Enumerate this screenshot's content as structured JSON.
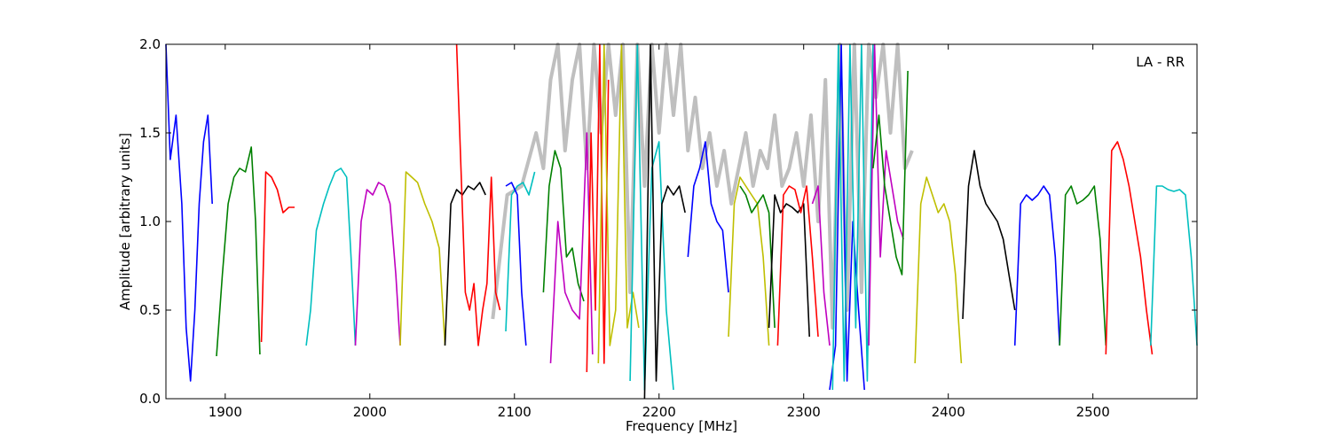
{
  "chart_data": {
    "type": "line",
    "annotation": "LA - RR",
    "xlabel": "Frequency [MHz]",
    "ylabel": "Amplitude [arbitrary units]",
    "xlim": [
      1859,
      2572
    ],
    "ylim": [
      0.0,
      2.0
    ],
    "xticks": [
      1900,
      2000,
      2100,
      2200,
      2300,
      2400,
      2500
    ],
    "xtick_labels": [
      "1900",
      "2000",
      "2100",
      "2200",
      "2300",
      "2400",
      "2500"
    ],
    "yticks": [
      0.0,
      0.5,
      1.0,
      1.5,
      2.0
    ],
    "ytick_labels": [
      "0.0",
      "0.5",
      "1.0",
      "1.5",
      "2.0"
    ],
    "grid": false,
    "background_series": {
      "color": "#bfbfbf",
      "x": [
        2085,
        2095,
        2105,
        2115,
        2120,
        2125,
        2130,
        2135,
        2140,
        2145,
        2150,
        2155,
        2160,
        2165,
        2170,
        2175,
        2180,
        2185,
        2190,
        2195,
        2200,
        2205,
        2210,
        2215,
        2220,
        2225,
        2230,
        2235,
        2240,
        2245,
        2250,
        2255,
        2260,
        2265,
        2270,
        2275,
        2280,
        2285,
        2290,
        2295,
        2300,
        2305,
        2310,
        2315,
        2320,
        2325,
        2330,
        2335,
        2340,
        2345,
        2350,
        2355,
        2360,
        2365,
        2370,
        2375
      ],
      "y": [
        0.45,
        1.15,
        1.2,
        1.5,
        1.3,
        1.8,
        2.0,
        1.4,
        1.8,
        2.0,
        1.3,
        2.0,
        1.5,
        2.0,
        1.6,
        2.0,
        0.6,
        2.0,
        1.2,
        2.0,
        1.5,
        2.0,
        1.6,
        2.0,
        1.4,
        1.7,
        1.3,
        1.5,
        1.2,
        1.4,
        1.1,
        1.3,
        1.5,
        1.2,
        1.4,
        1.3,
        1.6,
        1.2,
        1.3,
        1.5,
        1.2,
        1.6,
        1.0,
        1.8,
        0.4,
        2.0,
        0.5,
        2.0,
        0.6,
        2.0,
        1.7,
        2.0,
        1.5,
        2.0,
        1.3,
        1.4
      ]
    },
    "series": [
      {
        "color": "#0000ff",
        "x": [
          1859,
          1862,
          1866,
          1870,
          1873,
          1876,
          1879,
          1882,
          1885,
          1888,
          1891
        ],
        "y": [
          2.0,
          1.35,
          1.6,
          1.1,
          0.4,
          0.1,
          0.5,
          1.1,
          1.45,
          1.6,
          1.1
        ]
      },
      {
        "color": "#008000",
        "x": [
          1894,
          1898,
          1902,
          1906,
          1910,
          1914,
          1918,
          1921,
          1924
        ],
        "y": [
          0.24,
          0.7,
          1.1,
          1.25,
          1.3,
          1.28,
          1.42,
          1.0,
          0.25
        ]
      },
      {
        "color": "#ff0000",
        "x": [
          1925,
          1928,
          1932,
          1936,
          1940,
          1944,
          1948
        ],
        "y": [
          0.32,
          1.28,
          1.25,
          1.18,
          1.05,
          1.08,
          1.08
        ]
      },
      {
        "color": "#00bfbf",
        "x": [
          1956,
          1959,
          1963,
          1968,
          1972,
          1976,
          1980,
          1984,
          1987,
          1990
        ],
        "y": [
          0.3,
          0.5,
          0.95,
          1.1,
          1.2,
          1.28,
          1.3,
          1.25,
          0.8,
          0.3
        ]
      },
      {
        "color": "#bf00bf",
        "x": [
          1990,
          1994,
          1998,
          2002,
          2006,
          2010,
          2014,
          2018,
          2021
        ],
        "y": [
          0.3,
          1.0,
          1.18,
          1.15,
          1.22,
          1.2,
          1.1,
          0.7,
          0.3
        ]
      },
      {
        "color": "#bfbf00",
        "x": [
          2021,
          2025,
          2029,
          2033,
          2038,
          2043,
          2048,
          2052
        ],
        "y": [
          0.3,
          1.28,
          1.25,
          1.22,
          1.1,
          1.0,
          0.85,
          0.3
        ]
      },
      {
        "color": "#000000",
        "x": [
          2052,
          2056,
          2060,
          2064,
          2068,
          2072,
          2076,
          2080
        ],
        "y": [
          0.3,
          1.1,
          1.18,
          1.15,
          1.2,
          1.18,
          1.22,
          1.15
        ]
      },
      {
        "color": "#ff0000",
        "x": [
          2060,
          2063,
          2066,
          2069,
          2072,
          2075,
          2078,
          2081,
          2084,
          2087,
          2090
        ],
        "y": [
          2.0,
          1.3,
          0.6,
          0.5,
          0.65,
          0.3,
          0.5,
          0.65,
          1.25,
          0.6,
          0.5
        ]
      },
      {
        "color": "#00bfbf",
        "x": [
          2094,
          2098,
          2102,
          2106,
          2110,
          2114
        ],
        "y": [
          0.38,
          1.15,
          1.2,
          1.22,
          1.15,
          1.28
        ]
      },
      {
        "color": "#0000ff",
        "x": [
          2094,
          2098,
          2102,
          2105,
          2108
        ],
        "y": [
          1.2,
          1.22,
          1.15,
          0.6,
          0.3
        ]
      },
      {
        "color": "#008000",
        "x": [
          2120,
          2124,
          2128,
          2132,
          2136,
          2140,
          2144,
          2148
        ],
        "y": [
          0.6,
          1.2,
          1.4,
          1.3,
          0.8,
          0.85,
          0.65,
          0.55
        ]
      },
      {
        "color": "#bf00bf",
        "x": [
          2125,
          2130,
          2135,
          2140,
          2145,
          2150,
          2154
        ],
        "y": [
          0.2,
          1.0,
          0.6,
          0.5,
          0.45,
          1.5,
          0.25
        ]
      },
      {
        "color": "#ff0000",
        "x": [
          2150,
          2153,
          2156,
          2159,
          2162,
          2165
        ],
        "y": [
          0.15,
          1.5,
          0.5,
          2.0,
          0.2,
          1.8
        ]
      },
      {
        "color": "#bfbf00",
        "x": [
          2158,
          2162,
          2166,
          2170,
          2174,
          2178,
          2182,
          2186
        ],
        "y": [
          0.2,
          2.0,
          0.3,
          0.5,
          2.0,
          0.4,
          0.6,
          0.4
        ]
      },
      {
        "color": "#00bfbf",
        "x": [
          2180,
          2185,
          2190,
          2195,
          2200,
          2205,
          2210
        ],
        "y": [
          0.1,
          2.0,
          0.05,
          1.3,
          1.45,
          0.5,
          0.05
        ]
      },
      {
        "color": "#000000",
        "x": [
          2190,
          2194,
          2198,
          2202,
          2206,
          2210,
          2214,
          2218
        ],
        "y": [
          0.0,
          2.0,
          0.1,
          1.1,
          1.2,
          1.15,
          1.2,
          1.05
        ]
      },
      {
        "color": "#0000ff",
        "x": [
          2220,
          2224,
          2228,
          2232,
          2236,
          2240,
          2244,
          2248
        ],
        "y": [
          0.8,
          1.2,
          1.3,
          1.45,
          1.1,
          1.0,
          0.95,
          0.6
        ]
      },
      {
        "color": "#bfbf00",
        "x": [
          2248,
          2252,
          2256,
          2260,
          2264,
          2268,
          2272,
          2276
        ],
        "y": [
          0.35,
          1.1,
          1.25,
          1.2,
          1.15,
          1.1,
          0.8,
          0.3
        ]
      },
      {
        "color": "#008000",
        "x": [
          2256,
          2260,
          2264,
          2268,
          2272,
          2276,
          2280
        ],
        "y": [
          1.2,
          1.15,
          1.05,
          1.1,
          1.15,
          1.05,
          0.4
        ]
      },
      {
        "color": "#000000",
        "x": [
          2276,
          2280,
          2284,
          2288,
          2292,
          2296,
          2300,
          2304
        ],
        "y": [
          0.4,
          1.15,
          1.05,
          1.1,
          1.08,
          1.05,
          1.1,
          0.35
        ]
      },
      {
        "color": "#ff0000",
        "x": [
          2282,
          2286,
          2290,
          2294,
          2298,
          2302,
          2306,
          2310
        ],
        "y": [
          0.3,
          1.15,
          1.2,
          1.18,
          1.05,
          1.2,
          0.8,
          0.35
        ]
      },
      {
        "color": "#bf00bf",
        "x": [
          2306,
          2310,
          2314,
          2318
        ],
        "y": [
          1.1,
          1.2,
          0.6,
          0.3
        ]
      },
      {
        "color": "#0000ff",
        "x": [
          2318,
          2322,
          2326,
          2330,
          2334,
          2338,
          2342
        ],
        "y": [
          0.05,
          0.3,
          2.0,
          0.1,
          1.0,
          0.5,
          0.05
        ]
      },
      {
        "color": "#00bfbf",
        "x": [
          2320,
          2324,
          2328,
          2332,
          2336,
          2340,
          2344,
          2348
        ],
        "y": [
          0.05,
          2.0,
          0.1,
          2.0,
          0.4,
          2.0,
          0.1,
          2.0
        ]
      },
      {
        "color": "#bf00bf",
        "x": [
          2345,
          2349,
          2353,
          2357,
          2361,
          2365,
          2369
        ],
        "y": [
          0.3,
          2.0,
          0.8,
          1.4,
          1.2,
          1.0,
          0.9
        ]
      },
      {
        "color": "#008000",
        "x": [
          2348,
          2352,
          2356,
          2360,
          2364,
          2368,
          2372
        ],
        "y": [
          1.3,
          1.6,
          1.2,
          1.0,
          0.8,
          0.7,
          1.85
        ]
      },
      {
        "color": "#bfbf00",
        "x": [
          2377,
          2381,
          2385,
          2389,
          2393,
          2397,
          2401,
          2405,
          2409
        ],
        "y": [
          0.2,
          1.1,
          1.25,
          1.15,
          1.05,
          1.1,
          1.0,
          0.7,
          0.2
        ]
      },
      {
        "color": "#000000",
        "x": [
          2410,
          2414,
          2418,
          2422,
          2426,
          2430,
          2434,
          2438,
          2442,
          2446
        ],
        "y": [
          0.45,
          1.2,
          1.4,
          1.2,
          1.1,
          1.05,
          1.0,
          0.9,
          0.7,
          0.5
        ]
      },
      {
        "color": "#0000ff",
        "x": [
          2446,
          2450,
          2454,
          2458,
          2462,
          2466,
          2470,
          2474,
          2477
        ],
        "y": [
          0.3,
          1.1,
          1.15,
          1.12,
          1.15,
          1.2,
          1.15,
          0.8,
          0.3
        ]
      },
      {
        "color": "#008000",
        "x": [
          2477,
          2481,
          2485,
          2489,
          2493,
          2497,
          2501,
          2505,
          2509
        ],
        "y": [
          0.3,
          1.15,
          1.2,
          1.1,
          1.12,
          1.15,
          1.2,
          0.9,
          0.3
        ]
      },
      {
        "color": "#ff0000",
        "x": [
          2509,
          2513,
          2517,
          2521,
          2525,
          2529,
          2533,
          2537,
          2541
        ],
        "y": [
          0.25,
          1.4,
          1.45,
          1.35,
          1.2,
          1.0,
          0.8,
          0.5,
          0.25
        ]
      },
      {
        "color": "#00bfbf",
        "x": [
          2540,
          2544,
          2548,
          2552,
          2556,
          2560,
          2564,
          2568,
          2572
        ],
        "y": [
          0.3,
          1.2,
          1.2,
          1.18,
          1.17,
          1.18,
          1.15,
          0.8,
          0.3
        ]
      }
    ]
  }
}
